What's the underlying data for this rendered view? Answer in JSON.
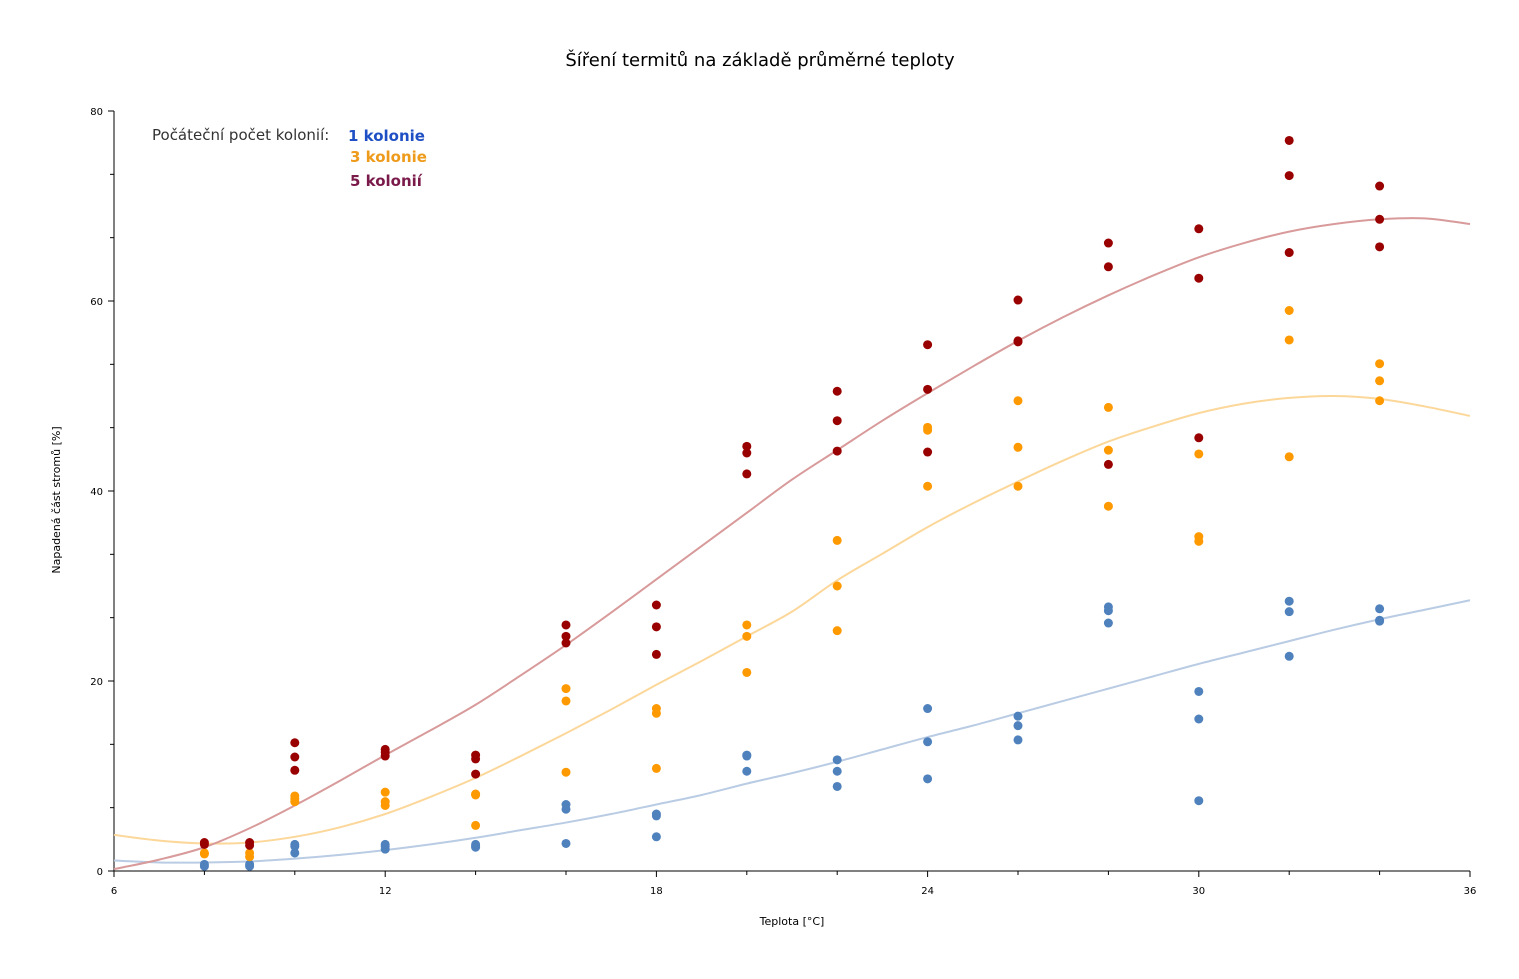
{
  "chart_data": {
    "type": "scatter",
    "title": "Šíření termitů na základě průměrné teploty",
    "xlabel": "Teplota [°C]",
    "ylabel": "Napadená část stromů [%]",
    "xlim": [
      6,
      36
    ],
    "ylim": [
      0,
      80
    ],
    "x_ticks": [
      6,
      12,
      18,
      24,
      30,
      36
    ],
    "y_ticks": [
      0,
      20,
      40,
      60,
      80
    ],
    "grid": false,
    "legend": {
      "placement": "top-left",
      "title": "Počáteční počet kolonií:"
    },
    "series": [
      {
        "name": "1 kolonie",
        "color": "#4f81bd",
        "label_color": "#1f4fc4",
        "trend_color": "#b9cce4",
        "points": [
          [
            8,
            0.5
          ],
          [
            8,
            0.7
          ],
          [
            9,
            0.5
          ],
          [
            9,
            0.7
          ],
          [
            10,
            1.9
          ],
          [
            10,
            2.6
          ],
          [
            10,
            2.8
          ],
          [
            12,
            2.3
          ],
          [
            12,
            2.6
          ],
          [
            12,
            2.8
          ],
          [
            14,
            2.5
          ],
          [
            14,
            2.6
          ],
          [
            14,
            2.8
          ],
          [
            16,
            2.9
          ],
          [
            16,
            6.5
          ],
          [
            16,
            7.0
          ],
          [
            18,
            3.6
          ],
          [
            18,
            5.8
          ],
          [
            18,
            6.0
          ],
          [
            20,
            10.5
          ],
          [
            20,
            12.1
          ],
          [
            20,
            12.2
          ],
          [
            22,
            8.9
          ],
          [
            22,
            10.5
          ],
          [
            22,
            11.7
          ],
          [
            24,
            9.7
          ],
          [
            24,
            13.6
          ],
          [
            24,
            17.1
          ],
          [
            26,
            13.8
          ],
          [
            26,
            15.3
          ],
          [
            26,
            16.3
          ],
          [
            28,
            26.1
          ],
          [
            28,
            27.4
          ],
          [
            28,
            27.8
          ],
          [
            30,
            7.4
          ],
          [
            30,
            16.0
          ],
          [
            30,
            18.9
          ],
          [
            32,
            22.6
          ],
          [
            32,
            27.3
          ],
          [
            32,
            28.4
          ],
          [
            34,
            26.3
          ],
          [
            34,
            26.4
          ],
          [
            34,
            27.6
          ]
        ],
        "trend": [
          [
            6,
            1.1
          ],
          [
            7,
            0.9
          ],
          [
            8,
            0.9
          ],
          [
            9,
            1.0
          ],
          [
            10,
            1.3
          ],
          [
            11,
            1.7
          ],
          [
            12,
            2.2
          ],
          [
            13,
            2.8
          ],
          [
            14,
            3.5
          ],
          [
            15,
            4.3
          ],
          [
            16,
            5.1
          ],
          [
            17,
            6.0
          ],
          [
            18,
            7.0
          ],
          [
            19,
            8.0
          ],
          [
            20,
            9.2
          ],
          [
            21,
            10.3
          ],
          [
            22,
            11.5
          ],
          [
            23,
            12.8
          ],
          [
            24,
            14.1
          ],
          [
            25,
            15.3
          ],
          [
            26,
            16.6
          ],
          [
            27,
            17.9
          ],
          [
            28,
            19.2
          ],
          [
            29,
            20.5
          ],
          [
            30,
            21.8
          ],
          [
            31,
            23.0
          ],
          [
            32,
            24.2
          ],
          [
            33,
            25.4
          ],
          [
            34,
            26.5
          ],
          [
            35,
            27.5
          ],
          [
            36,
            28.5
          ]
        ]
      },
      {
        "name": "3 kolonie",
        "color": "#ff9900",
        "label_color": "#ee9a1a",
        "trend_color": "#fcd79a",
        "points": [
          [
            8,
            1.8
          ],
          [
            8,
            1.9
          ],
          [
            9,
            1.5
          ],
          [
            9,
            1.9
          ],
          [
            10,
            7.3
          ],
          [
            10,
            7.6
          ],
          [
            10,
            7.9
          ],
          [
            12,
            6.9
          ],
          [
            12,
            7.3
          ],
          [
            12,
            8.3
          ],
          [
            14,
            4.8
          ],
          [
            14,
            8.0
          ],
          [
            14,
            8.1
          ],
          [
            16,
            10.4
          ],
          [
            16,
            17.9
          ],
          [
            16,
            19.2
          ],
          [
            18,
            10.8
          ],
          [
            18,
            16.6
          ],
          [
            18,
            17.1
          ],
          [
            20,
            20.9
          ],
          [
            20,
            24.7
          ],
          [
            20,
            25.9
          ],
          [
            22,
            25.3
          ],
          [
            22,
            30.0
          ],
          [
            22,
            34.8
          ],
          [
            24,
            40.5
          ],
          [
            24,
            46.4
          ],
          [
            24,
            46.7
          ],
          [
            26,
            40.5
          ],
          [
            26,
            44.6
          ],
          [
            26,
            49.5
          ],
          [
            28,
            38.4
          ],
          [
            28,
            44.3
          ],
          [
            28,
            48.8
          ],
          [
            30,
            34.7
          ],
          [
            30,
            35.2
          ],
          [
            30,
            43.9
          ],
          [
            32,
            43.6
          ],
          [
            32,
            55.9
          ],
          [
            32,
            59.0
          ],
          [
            34,
            49.5
          ],
          [
            34,
            51.6
          ],
          [
            34,
            53.4
          ]
        ],
        "trend": [
          [
            6,
            3.8
          ],
          [
            7,
            3.2
          ],
          [
            8,
            2.9
          ],
          [
            9,
            3.0
          ],
          [
            10,
            3.6
          ],
          [
            11,
            4.6
          ],
          [
            12,
            6.0
          ],
          [
            13,
            7.8
          ],
          [
            14,
            9.8
          ],
          [
            15,
            12.1
          ],
          [
            16,
            14.5
          ],
          [
            17,
            17.0
          ],
          [
            18,
            19.6
          ],
          [
            19,
            22.1
          ],
          [
            20,
            24.7
          ],
          [
            21,
            27.3
          ],
          [
            22,
            30.6
          ],
          [
            23,
            33.4
          ],
          [
            24,
            36.2
          ],
          [
            25,
            38.7
          ],
          [
            26,
            41.0
          ],
          [
            27,
            43.2
          ],
          [
            28,
            45.2
          ],
          [
            29,
            46.8
          ],
          [
            30,
            48.2
          ],
          [
            31,
            49.2
          ],
          [
            32,
            49.8
          ],
          [
            33,
            50.0
          ],
          [
            34,
            49.7
          ],
          [
            35,
            48.9
          ],
          [
            36,
            47.9
          ]
        ]
      },
      {
        "name": "5 kolonií",
        "color": "#990000",
        "label_color": "#7a1a4a",
        "trend_color": "#d89a9a",
        "points": [
          [
            8,
            2.8
          ],
          [
            8,
            3.0
          ],
          [
            9,
            2.7
          ],
          [
            9,
            3.0
          ],
          [
            10,
            10.6
          ],
          [
            10,
            12.0
          ],
          [
            10,
            13.5
          ],
          [
            12,
            12.1
          ],
          [
            12,
            12.5
          ],
          [
            12,
            12.8
          ],
          [
            14,
            10.2
          ],
          [
            14,
            11.8
          ],
          [
            14,
            12.2
          ],
          [
            16,
            24.0
          ],
          [
            16,
            24.7
          ],
          [
            16,
            25.9
          ],
          [
            18,
            22.8
          ],
          [
            18,
            25.7
          ],
          [
            18,
            28.0
          ],
          [
            20,
            41.8
          ],
          [
            20,
            44.0
          ],
          [
            20,
            44.7
          ],
          [
            22,
            44.2
          ],
          [
            22,
            47.4
          ],
          [
            22,
            50.5
          ],
          [
            24,
            44.1
          ],
          [
            24,
            50.7
          ],
          [
            24,
            55.4
          ],
          [
            26,
            55.7
          ],
          [
            26,
            55.8
          ],
          [
            26,
            60.1
          ],
          [
            28,
            42.8
          ],
          [
            28,
            63.6
          ],
          [
            28,
            66.1
          ],
          [
            30,
            45.6
          ],
          [
            30,
            62.4
          ],
          [
            30,
            67.6
          ],
          [
            32,
            65.1
          ],
          [
            32,
            73.2
          ],
          [
            32,
            76.9
          ],
          [
            34,
            65.7
          ],
          [
            34,
            68.6
          ],
          [
            34,
            72.1
          ]
        ],
        "trend": [
          [
            6,
            0.2
          ],
          [
            7,
            1.2
          ],
          [
            8,
            2.5
          ],
          [
            9,
            4.5
          ],
          [
            10,
            6.9
          ],
          [
            11,
            9.5
          ],
          [
            12,
            12.2
          ],
          [
            13,
            14.8
          ],
          [
            14,
            17.5
          ],
          [
            15,
            20.6
          ],
          [
            16,
            23.8
          ],
          [
            17,
            27.2
          ],
          [
            18,
            30.7
          ],
          [
            19,
            34.2
          ],
          [
            20,
            37.7
          ],
          [
            21,
            41.2
          ],
          [
            22,
            44.3
          ],
          [
            23,
            47.4
          ],
          [
            24,
            50.3
          ],
          [
            25,
            53.1
          ],
          [
            26,
            55.8
          ],
          [
            27,
            58.3
          ],
          [
            28,
            60.6
          ],
          [
            29,
            62.7
          ],
          [
            30,
            64.6
          ],
          [
            31,
            66.1
          ],
          [
            32,
            67.3
          ],
          [
            33,
            68.1
          ],
          [
            34,
            68.6
          ],
          [
            35,
            68.7
          ],
          [
            36,
            68.1
          ]
        ]
      }
    ]
  }
}
